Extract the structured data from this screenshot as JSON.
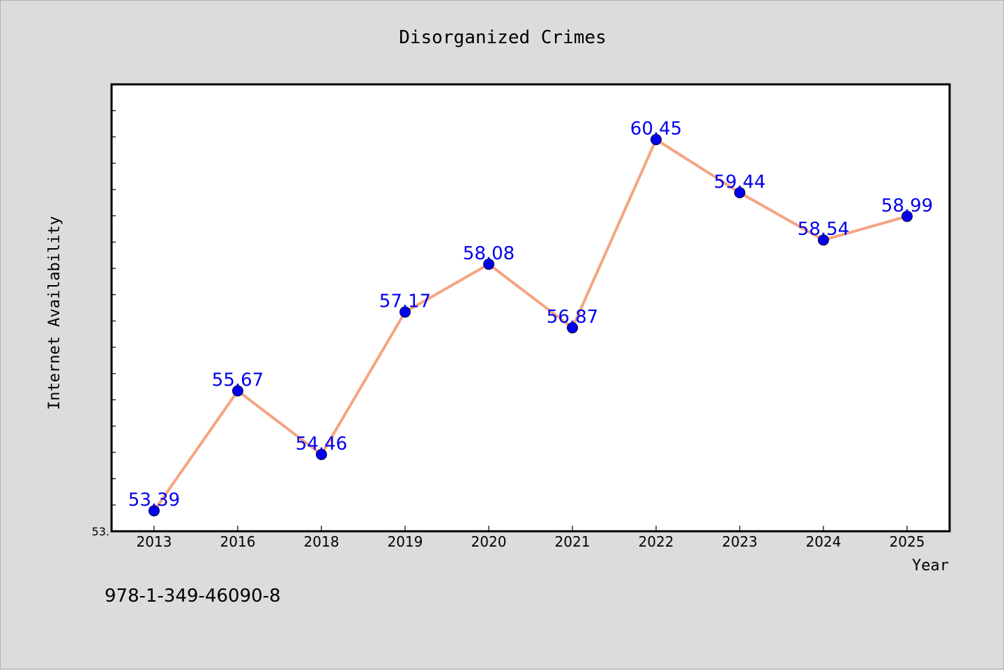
{
  "chart_data": {
    "type": "line",
    "title": "Disorganized Crimes",
    "xlabel": "Year",
    "ylabel": "Internet Availability",
    "categories": [
      "2013",
      "2016",
      "2018",
      "2019",
      "2020",
      "2021",
      "2022",
      "2023",
      "2024",
      "2025"
    ],
    "series": [
      {
        "values": [
          53.39,
          55.67,
          54.46,
          57.17,
          58.08,
          56.87,
          60.45,
          59.44,
          58.54,
          58.99
        ],
        "labels": [
          "53.39",
          "55.67",
          "54.46",
          "57.17",
          "58.08",
          "56.87",
          "60.45",
          "59.44",
          "58.54",
          "58.99"
        ],
        "line_color": "#f4a582",
        "marker_color": "#0000ee"
      }
    ],
    "ylim": [
      53.0,
      61.5
    ],
    "y_tick_label": "53.",
    "grid": false
  },
  "footer_text": "978-1-349-46090-8",
  "colors": {
    "background": "#dcdcdc",
    "plot_background": "#ffffff",
    "label_color": "#0000ee",
    "axis": "#000000"
  }
}
